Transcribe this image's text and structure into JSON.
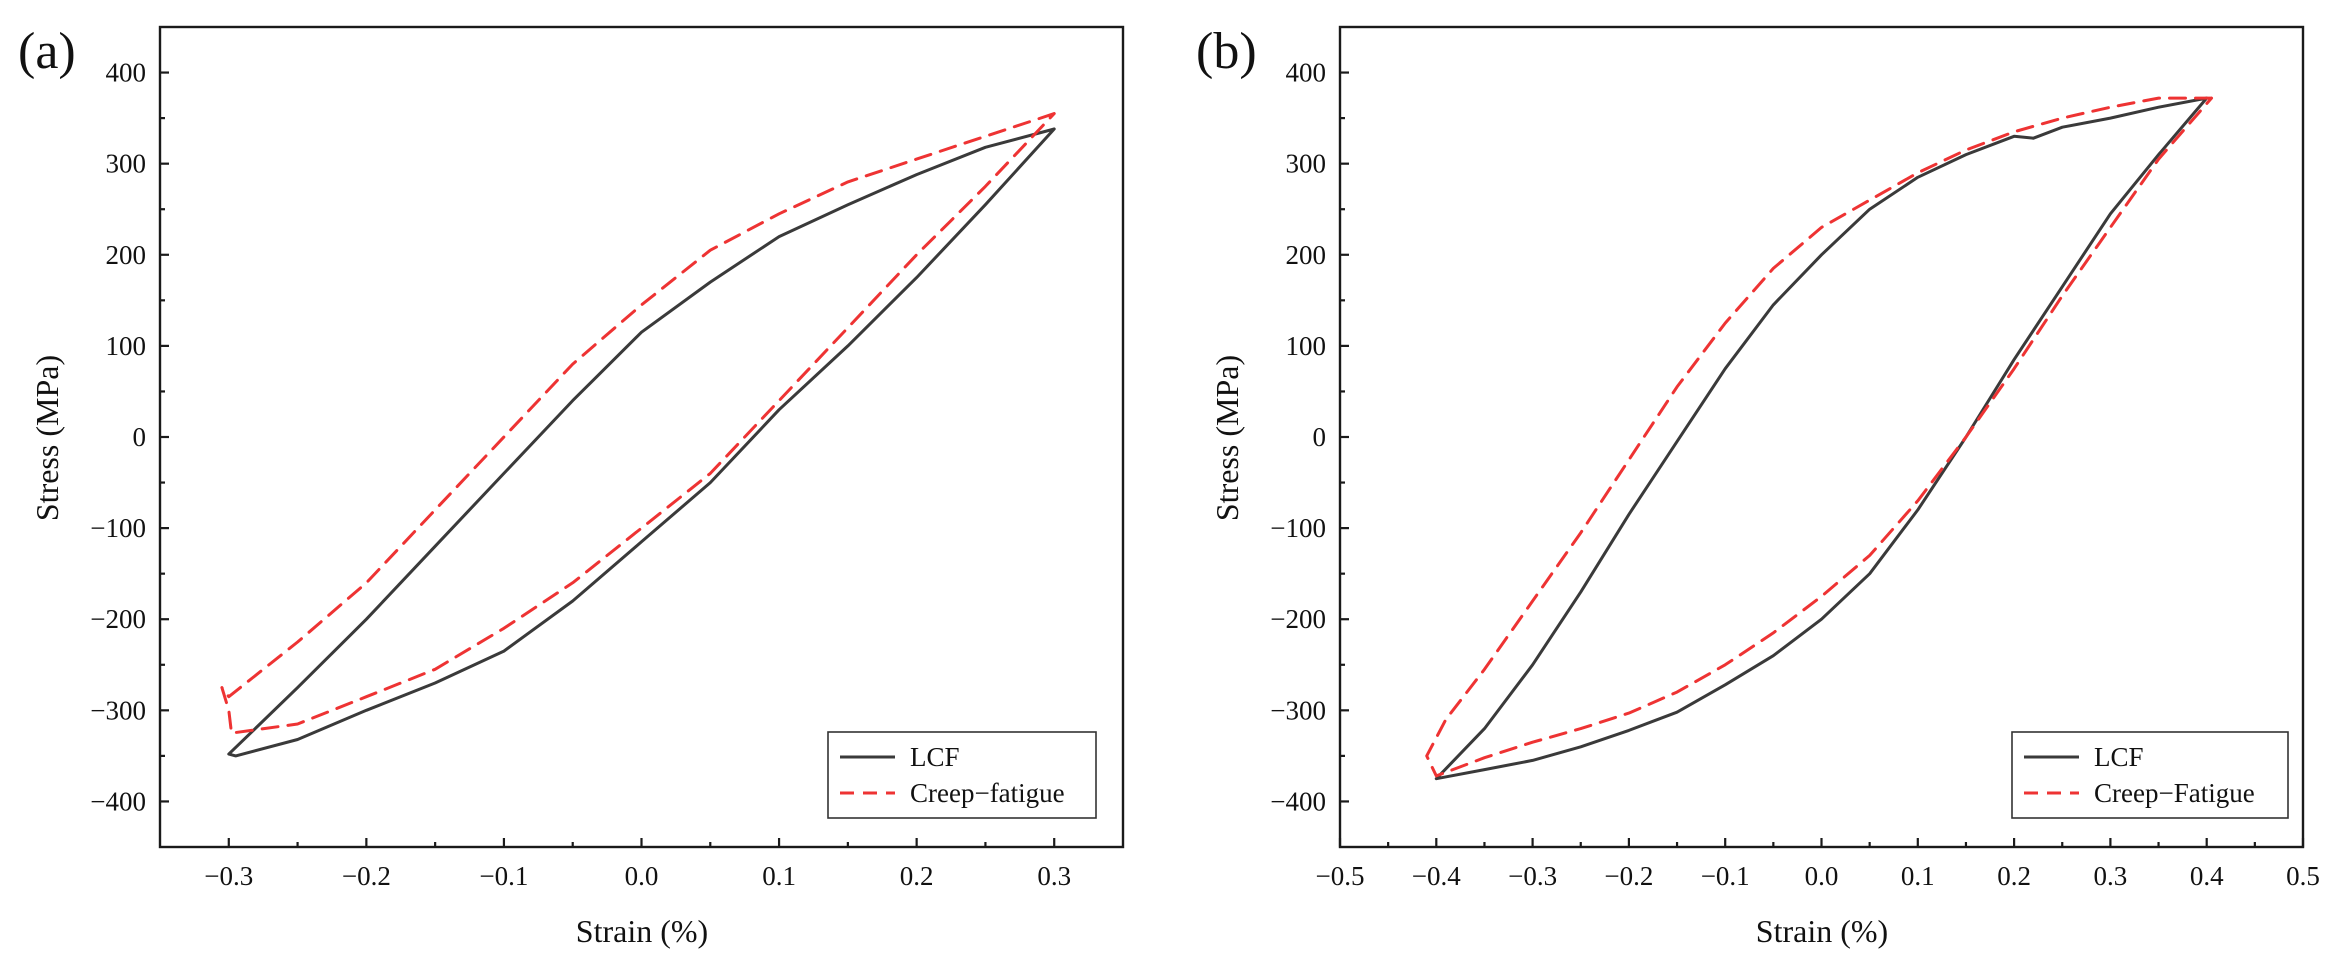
{
  "chart_data": [
    {
      "type": "line",
      "panel_label": "(a)",
      "xlabel": "Strain (%)",
      "ylabel": "Stress (MPa)",
      "xlim": [
        -0.35,
        0.35
      ],
      "ylim": [
        -450,
        450
      ],
      "xticks": [
        -0.3,
        -0.2,
        -0.1,
        0.0,
        0.1,
        0.2,
        0.3
      ],
      "xtick_labels": [
        "−0.3",
        "−0.2",
        "−0.1",
        "0.0",
        "0.1",
        "0.2",
        "0.3"
      ],
      "yticks": [
        -400,
        -300,
        -200,
        -100,
        0,
        100,
        200,
        300,
        400
      ],
      "ytick_labels": [
        "−400",
        "−300",
        "−200",
        "−100",
        "0",
        "100",
        "200",
        "300",
        "400"
      ],
      "legend_position": "bottom-right",
      "series": [
        {
          "name": "LCF",
          "color": "#3a3a3a",
          "dash": "solid",
          "points": [
            [
              0.3,
              338
            ],
            [
              0.25,
              318
            ],
            [
              0.2,
              288
            ],
            [
              0.15,
              255
            ],
            [
              0.1,
              220
            ],
            [
              0.05,
              170
            ],
            [
              0.0,
              115
            ],
            [
              -0.05,
              40
            ],
            [
              -0.1,
              -40
            ],
            [
              -0.15,
              -120
            ],
            [
              -0.2,
              -200
            ],
            [
              -0.25,
              -275
            ],
            [
              -0.3,
              -348
            ],
            [
              -0.295,
              -350
            ],
            [
              -0.25,
              -332
            ],
            [
              -0.2,
              -300
            ],
            [
              -0.15,
              -270
            ],
            [
              -0.1,
              -235
            ],
            [
              -0.05,
              -180
            ],
            [
              0.0,
              -115
            ],
            [
              0.05,
              -50
            ],
            [
              0.1,
              30
            ],
            [
              0.15,
              100
            ],
            [
              0.2,
              175
            ],
            [
              0.25,
              255
            ],
            [
              0.3,
              338
            ]
          ]
        },
        {
          "name": "Creep−fatigue",
          "color": "#ee3333",
          "dash": "dashed",
          "points": [
            [
              0.3,
              355
            ],
            [
              0.25,
              330
            ],
            [
              0.2,
              305
            ],
            [
              0.15,
              280
            ],
            [
              0.1,
              245
            ],
            [
              0.05,
              205
            ],
            [
              0.0,
              145
            ],
            [
              -0.05,
              80
            ],
            [
              -0.1,
              0
            ],
            [
              -0.15,
              -80
            ],
            [
              -0.2,
              -160
            ],
            [
              -0.25,
              -225
            ],
            [
              -0.3,
              -285
            ],
            [
              -0.305,
              -275
            ],
            [
              -0.3,
              -300
            ],
            [
              -0.298,
              -325
            ],
            [
              -0.25,
              -315
            ],
            [
              -0.2,
              -285
            ],
            [
              -0.15,
              -255
            ],
            [
              -0.1,
              -210
            ],
            [
              -0.05,
              -160
            ],
            [
              0.0,
              -100
            ],
            [
              0.05,
              -40
            ],
            [
              0.1,
              40
            ],
            [
              0.15,
              120
            ],
            [
              0.2,
              200
            ],
            [
              0.25,
              275
            ],
            [
              0.3,
              355
            ]
          ]
        }
      ]
    },
    {
      "type": "line",
      "panel_label": "(b)",
      "xlabel": "Strain (%)",
      "ylabel": "Stress (MPa)",
      "xlim": [
        -0.5,
        0.5
      ],
      "ylim": [
        -450,
        450
      ],
      "xticks": [
        -0.5,
        -0.4,
        -0.3,
        -0.2,
        -0.1,
        0.0,
        0.1,
        0.2,
        0.3,
        0.4,
        0.5
      ],
      "xtick_labels": [
        "−0.5",
        "−0.4",
        "−0.3",
        "−0.2",
        "−0.1",
        "0.0",
        "0.1",
        "0.2",
        "0.3",
        "0.4",
        "0.5"
      ],
      "yticks": [
        -400,
        -300,
        -200,
        -100,
        0,
        100,
        200,
        300,
        400
      ],
      "ytick_labels": [
        "−400",
        "−300",
        "−200",
        "−100",
        "0",
        "100",
        "200",
        "300",
        "400"
      ],
      "legend_position": "bottom-right",
      "series": [
        {
          "name": "LCF",
          "color": "#3a3a3a",
          "dash": "solid",
          "points": [
            [
              0.4,
              372
            ],
            [
              0.35,
              362
            ],
            [
              0.3,
              350
            ],
            [
              0.25,
              340
            ],
            [
              0.22,
              328
            ],
            [
              0.2,
              330
            ],
            [
              0.15,
              310
            ],
            [
              0.1,
              285
            ],
            [
              0.05,
              250
            ],
            [
              0.0,
              200
            ],
            [
              -0.05,
              145
            ],
            [
              -0.1,
              75
            ],
            [
              -0.15,
              -5
            ],
            [
              -0.2,
              -85
            ],
            [
              -0.25,
              -170
            ],
            [
              -0.3,
              -250
            ],
            [
              -0.35,
              -320
            ],
            [
              -0.4,
              -375
            ],
            [
              -0.35,
              -365
            ],
            [
              -0.3,
              -355
            ],
            [
              -0.25,
              -340
            ],
            [
              -0.2,
              -322
            ],
            [
              -0.15,
              -302
            ],
            [
              -0.1,
              -272
            ],
            [
              -0.05,
              -240
            ],
            [
              0.0,
              -200
            ],
            [
              0.05,
              -150
            ],
            [
              0.1,
              -80
            ],
            [
              0.15,
              0
            ],
            [
              0.2,
              85
            ],
            [
              0.25,
              165
            ],
            [
              0.3,
              245
            ],
            [
              0.35,
              310
            ],
            [
              0.4,
              372
            ]
          ]
        },
        {
          "name": "Creep−Fatigue",
          "color": "#ee3333",
          "dash": "dashed",
          "points": [
            [
              0.405,
              372
            ],
            [
              0.35,
              372
            ],
            [
              0.3,
              362
            ],
            [
              0.25,
              350
            ],
            [
              0.2,
              335
            ],
            [
              0.15,
              315
            ],
            [
              0.1,
              290
            ],
            [
              0.05,
              260
            ],
            [
              0.0,
              230
            ],
            [
              -0.05,
              185
            ],
            [
              -0.1,
              125
            ],
            [
              -0.15,
              55
            ],
            [
              -0.2,
              -25
            ],
            [
              -0.25,
              -105
            ],
            [
              -0.3,
              -180
            ],
            [
              -0.35,
              -255
            ],
            [
              -0.39,
              -310
            ],
            [
              -0.4,
              -330
            ],
            [
              -0.41,
              -350
            ],
            [
              -0.4,
              -372
            ],
            [
              -0.35,
              -352
            ],
            [
              -0.3,
              -335
            ],
            [
              -0.25,
              -320
            ],
            [
              -0.2,
              -303
            ],
            [
              -0.15,
              -280
            ],
            [
              -0.1,
              -250
            ],
            [
              -0.05,
              -215
            ],
            [
              0.0,
              -175
            ],
            [
              0.05,
              -130
            ],
            [
              0.1,
              -70
            ],
            [
              0.15,
              0
            ],
            [
              0.2,
              75
            ],
            [
              0.25,
              155
            ],
            [
              0.3,
              230
            ],
            [
              0.35,
              305
            ],
            [
              0.405,
              372
            ]
          ]
        }
      ]
    }
  ]
}
